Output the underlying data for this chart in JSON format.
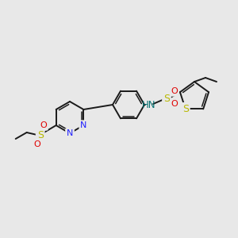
{
  "bg_color": "#e8e8e8",
  "bond_color": "#1a1a1a",
  "N_color": "#2020ff",
  "S_color": "#b8b800",
  "O_color": "#e00000",
  "NH_color": "#007070",
  "figsize": [
    3.0,
    3.0
  ],
  "dpi": 100,
  "xlim": [
    0,
    300
  ],
  "ylim": [
    0,
    300
  ]
}
